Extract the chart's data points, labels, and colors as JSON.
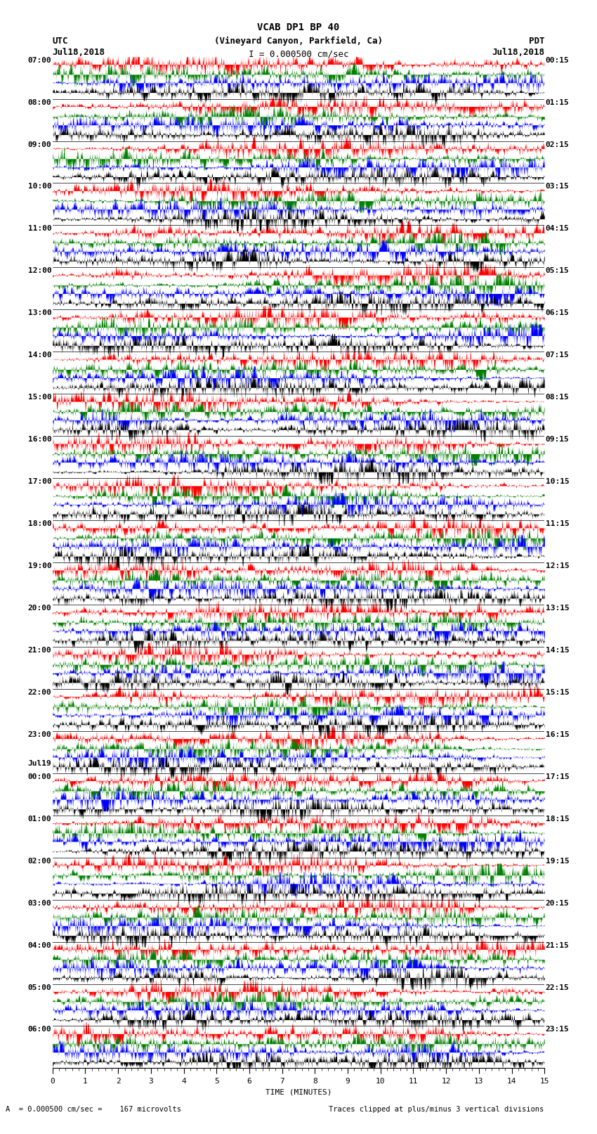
{
  "title_line1": "VCAB DP1 BP 40",
  "title_line2": "(Vineyard Canyon, Parkfield, Ca)",
  "title_line3": "I = 0.000500 cm/sec",
  "left_label": "UTC",
  "left_date": "Jul18,2018",
  "right_label": "PDT",
  "right_date": "Jul18,2018",
  "bottom_label": "TIME (MINUTES)",
  "bottom_note": "A  = 0.000500 cm/sec =    167 microvolts",
  "bottom_note2": "Traces clipped at plus/minus 3 vertical divisions",
  "utc_labels": [
    "07:00",
    "08:00",
    "09:00",
    "10:00",
    "11:00",
    "12:00",
    "13:00",
    "14:00",
    "15:00",
    "16:00",
    "17:00",
    "18:00",
    "19:00",
    "20:00",
    "21:00",
    "22:00",
    "23:00",
    "00:00",
    "01:00",
    "02:00",
    "03:00",
    "04:00",
    "05:00",
    "06:00"
  ],
  "pdt_labels": [
    "00:15",
    "01:15",
    "02:15",
    "03:15",
    "04:15",
    "05:15",
    "06:15",
    "07:15",
    "08:15",
    "09:15",
    "10:15",
    "11:15",
    "12:15",
    "13:15",
    "14:15",
    "15:15",
    "16:15",
    "17:15",
    "18:15",
    "19:15",
    "20:15",
    "21:15",
    "22:15",
    "23:15"
  ],
  "jul19_label": "Jul19",
  "n_rows": 24,
  "n_minutes": 15,
  "samples_per_row": 9000,
  "bg_color": "white",
  "colors": {
    "red": "#ff0000",
    "green": "#008000",
    "blue": "#0000ff",
    "black": "#000000"
  },
  "seed": 42
}
